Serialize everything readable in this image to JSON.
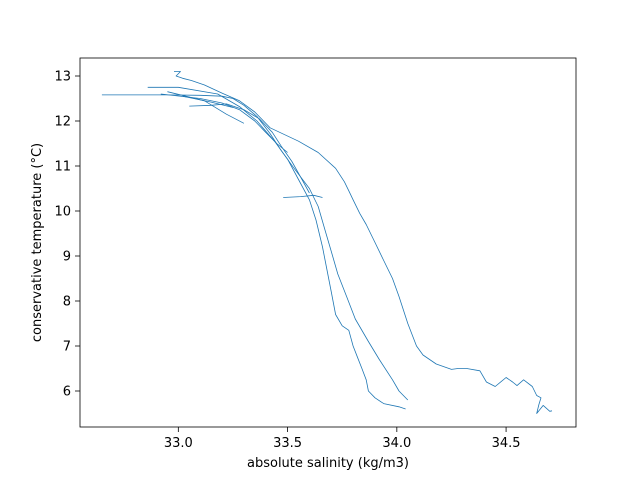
{
  "chart_data": {
    "type": "line",
    "title": "",
    "xlabel": "absolute salinity (kg/m3)",
    "ylabel": "conservative temperature (°C)",
    "xlim": [
      32.55,
      34.82
    ],
    "ylim": [
      5.2,
      13.4
    ],
    "xticks": [
      33.0,
      33.5,
      34.0,
      34.5
    ],
    "yticks": [
      6,
      7,
      8,
      9,
      10,
      11,
      12,
      13
    ],
    "xtick_labels": [
      "33.0",
      "33.5",
      "34.0",
      "34.5"
    ],
    "ytick_labels": [
      "6",
      "7",
      "8",
      "9",
      "10",
      "11",
      "12",
      "13"
    ],
    "line_color": "#1f77b4",
    "grid": false,
    "series": [
      {
        "x": [
          32.98,
          33.01,
          32.99,
          33.02,
          33.06,
          33.12,
          33.2,
          33.28,
          33.35,
          33.42,
          33.55,
          33.64,
          33.72,
          33.76,
          33.78,
          33.8,
          33.83,
          33.86,
          33.9,
          33.94,
          33.98,
          34.01,
          34.05,
          34.09,
          34.12,
          34.18,
          34.25,
          34.28,
          34.32,
          34.38,
          34.41,
          34.45,
          34.5,
          34.53,
          34.55,
          34.58,
          34.62,
          34.64,
          34.66,
          34.65,
          34.64,
          34.67,
          34.7,
          34.71
        ],
        "y": [
          13.1,
          13.1,
          13.0,
          12.95,
          12.9,
          12.8,
          12.62,
          12.45,
          12.2,
          11.85,
          11.55,
          11.3,
          10.95,
          10.65,
          10.45,
          10.25,
          9.95,
          9.7,
          9.3,
          8.9,
          8.5,
          8.1,
          7.5,
          7.0,
          6.8,
          6.6,
          6.48,
          6.5,
          6.5,
          6.45,
          6.2,
          6.1,
          6.3,
          6.2,
          6.12,
          6.25,
          6.1,
          5.9,
          5.85,
          5.7,
          5.5,
          5.68,
          5.55,
          5.56
        ]
      },
      {
        "x": [
          32.65,
          32.95,
          33.1,
          33.2,
          33.25,
          33.3,
          33.36,
          33.42,
          33.47,
          33.53,
          33.6,
          33.64,
          33.67,
          33.7,
          33.73,
          33.77,
          33.81,
          33.87,
          33.92,
          33.98,
          34.01,
          34.05
        ],
        "y": [
          12.58,
          12.58,
          12.57,
          12.55,
          12.5,
          12.35,
          12.1,
          11.72,
          11.35,
          10.95,
          10.5,
          10.1,
          9.6,
          9.1,
          8.6,
          8.1,
          7.6,
          7.1,
          6.7,
          6.25,
          6.0,
          5.8
        ]
      },
      {
        "x": [
          32.86,
          33.0,
          33.18,
          33.28,
          33.36,
          33.44,
          33.5,
          33.55,
          33.6,
          33.63,
          33.66,
          33.68,
          33.7,
          33.72,
          33.75,
          33.78,
          33.8,
          33.82,
          33.84,
          33.86,
          33.87,
          33.9,
          33.94,
          34.01,
          34.04
        ],
        "y": [
          12.75,
          12.75,
          12.6,
          12.32,
          12.0,
          11.55,
          11.15,
          10.7,
          10.25,
          9.8,
          9.2,
          8.7,
          8.2,
          7.7,
          7.45,
          7.35,
          7.0,
          6.75,
          6.5,
          6.25,
          6.0,
          5.85,
          5.72,
          5.65,
          5.6
        ]
      },
      {
        "x": [
          33.05,
          33.15,
          33.22,
          33.3,
          33.37,
          33.43,
          33.47,
          33.52,
          33.56,
          33.6
        ],
        "y": [
          12.33,
          12.35,
          12.38,
          12.25,
          12.05,
          11.75,
          11.45,
          11.1,
          10.75,
          10.4
        ]
      },
      {
        "x": [
          32.92,
          33.1,
          33.2,
          33.28,
          33.35,
          33.4,
          33.45,
          33.5
        ],
        "y": [
          12.6,
          12.5,
          12.4,
          12.25,
          12.0,
          11.75,
          11.5,
          11.3
        ]
      },
      {
        "x": [
          32.95,
          33.12,
          33.22,
          33.3
        ],
        "y": [
          12.65,
          12.45,
          12.15,
          11.95
        ]
      },
      {
        "x": [
          33.48,
          33.56,
          33.62,
          33.66
        ],
        "y": [
          10.3,
          10.32,
          10.35,
          10.3
        ]
      },
      {
        "x": [
          33.02,
          33.15,
          33.25
        ],
        "y": [
          12.55,
          12.42,
          12.3
        ]
      }
    ]
  }
}
